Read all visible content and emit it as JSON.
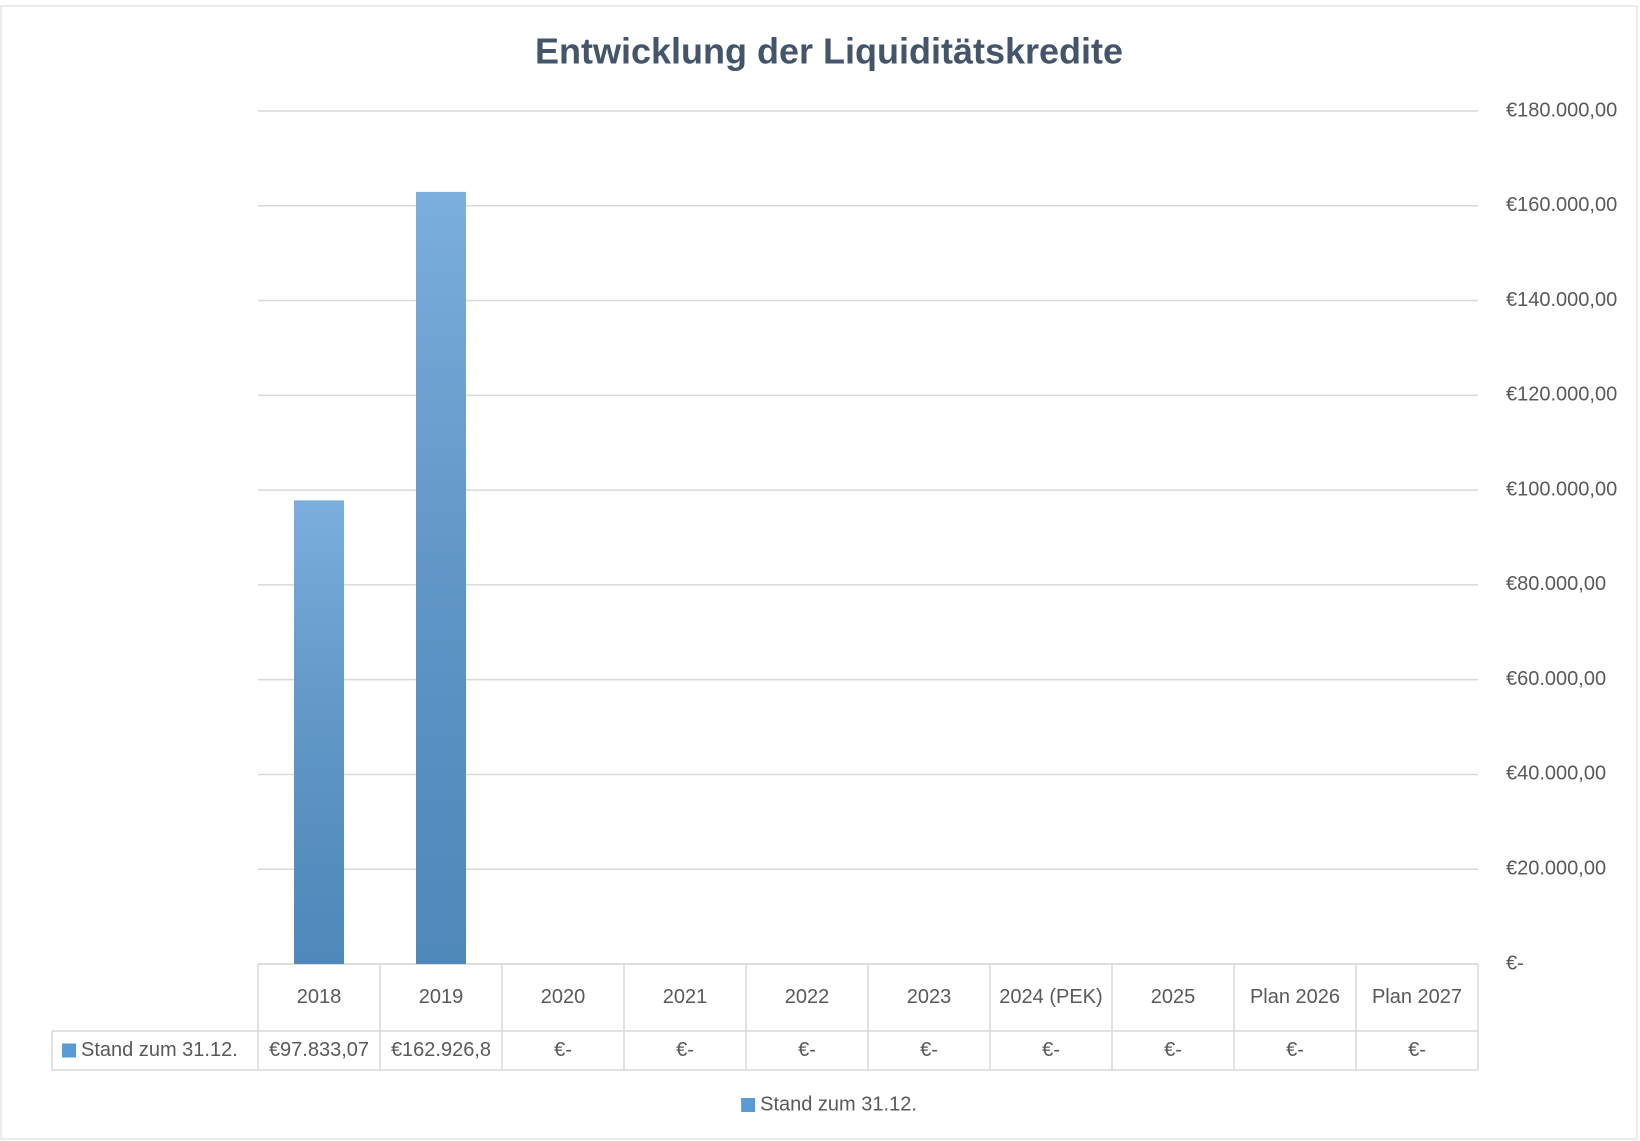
{
  "chart_data": {
    "type": "bar",
    "title": "Entwicklung der Liquiditätskredite",
    "categories": [
      "2018",
      "2019",
      "2020",
      "2021",
      "2022",
      "2023",
      "2024 (PEK)",
      "2025",
      "Plan 2026",
      "Plan 2027"
    ],
    "series": [
      {
        "name": "Stand zum 31.12.",
        "color": "#5b9bd5",
        "values": [
          97833.07,
          162926.8,
          0,
          0,
          0,
          0,
          0,
          0,
          0,
          0
        ],
        "value_labels": [
          "€97.833,07",
          "€162.926,8",
          "€-",
          "€-",
          "€-",
          "€-",
          "€-",
          "€-",
          "€-",
          "€-"
        ]
      }
    ],
    "ylim": [
      0,
      180000
    ],
    "yticks": [
      {
        "value": 0,
        "label": "€-"
      },
      {
        "value": 20000,
        "label": "€20.000,00"
      },
      {
        "value": 40000,
        "label": "€40.000,00"
      },
      {
        "value": 60000,
        "label": "€60.000,00"
      },
      {
        "value": 80000,
        "label": "€80.000,00"
      },
      {
        "value": 100000,
        "label": "€100.000,00"
      },
      {
        "value": 120000,
        "label": "€120.000,00"
      },
      {
        "value": 140000,
        "label": "€140.000,00"
      },
      {
        "value": 160000,
        "label": "€160.000,00"
      },
      {
        "value": 180000,
        "label": "€180.000,00"
      }
    ],
    "grid": true,
    "legend": "bottom"
  }
}
